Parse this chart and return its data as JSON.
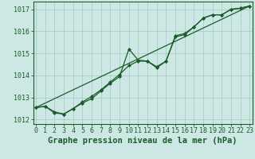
{
  "bg_color": "#cde8e4",
  "grid_color": "#a8cdc8",
  "line_color": "#1a5c2a",
  "xlabel": "Graphe pression niveau de la mer (hPa)",
  "xlabel_fontsize": 7.5,
  "tick_fontsize": 6,
  "yticks": [
    1012,
    1013,
    1014,
    1015,
    1016,
    1017
  ],
  "xticks": [
    0,
    1,
    2,
    3,
    4,
    5,
    6,
    7,
    8,
    9,
    10,
    11,
    12,
    13,
    14,
    15,
    16,
    17,
    18,
    19,
    20,
    21,
    22,
    23
  ],
  "ylim": [
    1011.8,
    1017.35
  ],
  "xlim": [
    -0.3,
    23.3
  ],
  "line1_x": [
    0,
    1,
    2,
    3,
    4,
    5,
    6,
    7,
    8,
    9,
    10,
    11,
    12,
    13,
    14,
    15,
    16,
    17,
    18,
    19,
    20,
    21,
    22,
    23
  ],
  "line1_y": [
    1012.55,
    1012.6,
    1012.3,
    1012.25,
    1012.5,
    1012.75,
    1012.95,
    1013.3,
    1013.65,
    1013.95,
    1015.2,
    1014.7,
    1014.65,
    1014.35,
    1014.65,
    1015.75,
    1015.85,
    1016.2,
    1016.6,
    1016.75,
    1016.75,
    1017.0,
    1017.05,
    1017.15
  ],
  "line2_x": [
    0,
    1,
    2,
    3,
    4,
    5,
    6,
    7,
    8,
    9,
    10,
    11,
    12,
    13,
    14,
    15,
    16,
    17,
    18,
    19,
    20,
    21,
    22,
    23
  ],
  "line2_y": [
    1012.55,
    1012.6,
    1012.35,
    1012.25,
    1012.5,
    1012.8,
    1013.05,
    1013.35,
    1013.7,
    1014.05,
    1014.45,
    1014.65,
    1014.65,
    1014.4,
    1014.65,
    1015.8,
    1015.9,
    1016.2,
    1016.6,
    1016.75,
    1016.75,
    1017.0,
    1017.05,
    1017.15
  ],
  "trend_x": [
    0,
    23
  ],
  "trend_y": [
    1012.55,
    1017.15
  ]
}
